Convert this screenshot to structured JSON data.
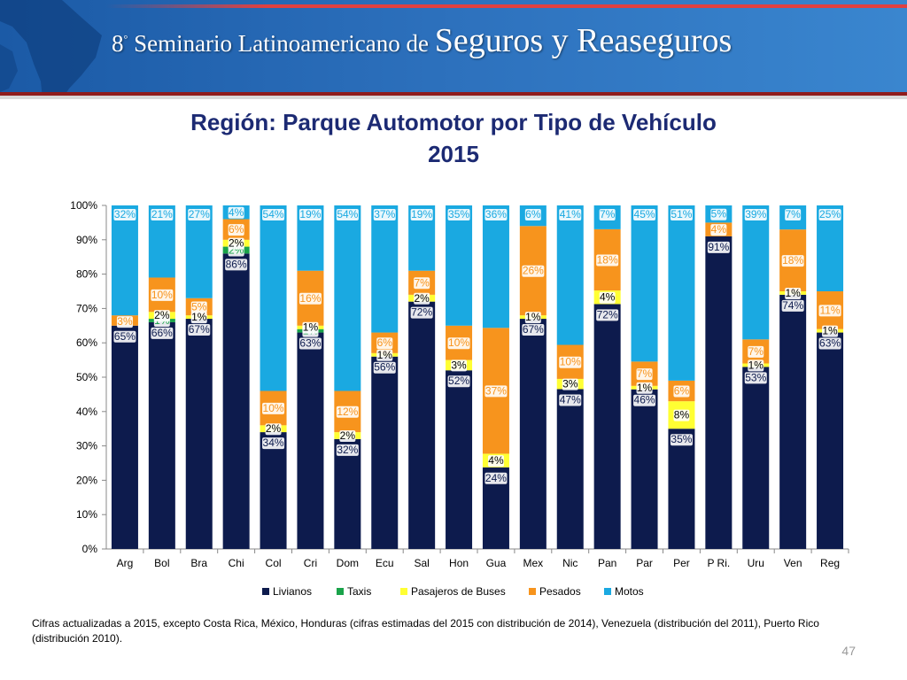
{
  "header": {
    "ordinal": "8",
    "ordinal_suffix": "°",
    "text": "Seminario Latinoamericano de",
    "emphasis": "Seguros y Reaseguros"
  },
  "footnote": "Cifras actualizadas a 2015, excepto Costa Rica, México, Honduras (cifras estimadas del 2015 con distribución de 2014), Venezuela (distribución del 2011), Puerto Rico (distribución 2010).",
  "page_number": "47",
  "colors": {
    "Livianos": "#0d1b4d",
    "Taxis": "#1aa34a",
    "Pasajeros de Buses": "#ffff33",
    "Pesados": "#f7941d",
    "Motos": "#1aa9e1",
    "title": "#1c2a73"
  },
  "chart_data": {
    "type": "bar",
    "stacked": true,
    "title": "Región: Parque Automotor por Tipo de Vehículo",
    "subtitle": "2015",
    "ylim": [
      0,
      100
    ],
    "y_ticks": [
      "0%",
      "10%",
      "20%",
      "30%",
      "40%",
      "50%",
      "60%",
      "70%",
      "80%",
      "90%",
      "100%"
    ],
    "legend_position": "bottom",
    "grid": false,
    "categories": [
      "Arg",
      "Bol",
      "Bra",
      "Chi",
      "Col",
      "Cri",
      "Dom",
      "Ecu",
      "Sal",
      "Hon",
      "Gua",
      "Mex",
      "Nic",
      "Pan",
      "Par",
      "Per",
      "P Ri.",
      "Uru",
      "Ven",
      "Reg"
    ],
    "series": [
      {
        "name": "Livianos",
        "values": [
          65,
          66,
          67,
          86,
          34,
          63,
          32,
          56,
          72,
          52,
          24,
          67,
          47,
          72,
          46,
          35,
          91,
          53,
          74,
          63
        ],
        "labels": [
          "65%",
          "66%",
          "67%",
          "86%",
          "34%",
          "63%",
          "32%",
          "56%",
          "72%",
          "52%",
          "24%",
          "67%",
          "47%",
          "72%",
          "46%",
          "35%",
          "91%",
          "53%",
          "74%",
          "63%"
        ]
      },
      {
        "name": "Taxis",
        "values": [
          0,
          1,
          0,
          2,
          0,
          1,
          0,
          0,
          0,
          0,
          0,
          0,
          0,
          0,
          0,
          0,
          0,
          0,
          0,
          0
        ],
        "labels": [
          "",
          "1%",
          "",
          "2%",
          "",
          "1%",
          "",
          "",
          "",
          "",
          "",
          "",
          "",
          "",
          "",
          "",
          "",
          "",
          "",
          ""
        ]
      },
      {
        "name": "Pasajeros de Buses",
        "values": [
          0,
          2,
          1,
          2,
          2,
          1,
          2,
          1,
          2,
          3,
          4,
          1,
          3,
          4,
          1,
          8,
          0,
          1,
          1,
          1
        ],
        "labels": [
          "",
          "2%",
          "1%",
          "2%",
          "2%",
          "1%",
          "2%",
          "1%",
          "2%",
          "3%",
          "4%",
          "1%",
          "3%",
          "4%",
          "1%",
          "8%",
          "",
          "1%",
          "1%",
          "1%"
        ]
      },
      {
        "name": "Pesados",
        "values": [
          3,
          10,
          5,
          6,
          10,
          16,
          12,
          6,
          7,
          10,
          37,
          26,
          10,
          18,
          7,
          6,
          4,
          7,
          18,
          11
        ],
        "labels": [
          "3%",
          "10%",
          "5%",
          "6%",
          "10%",
          "16%",
          "12%",
          "6%",
          "7%",
          "10%",
          "37%",
          "26%",
          "10%",
          "18%",
          "7%",
          "6%",
          "4%",
          "7%",
          "18%",
          "11%"
        ]
      },
      {
        "name": "Motos",
        "values": [
          32,
          21,
          27,
          4,
          54,
          19,
          54,
          37,
          19,
          35,
          36,
          6,
          41,
          7,
          45,
          51,
          5,
          39,
          7,
          25
        ],
        "labels": [
          "32%",
          "21%",
          "27%",
          "4%",
          "54%",
          "19%",
          "54%",
          "37%",
          "19%",
          "35%",
          "36%",
          "6%",
          "41%",
          "7%",
          "45%",
          "51%",
          "5%",
          "39%",
          "7%",
          "25%"
        ]
      }
    ]
  }
}
